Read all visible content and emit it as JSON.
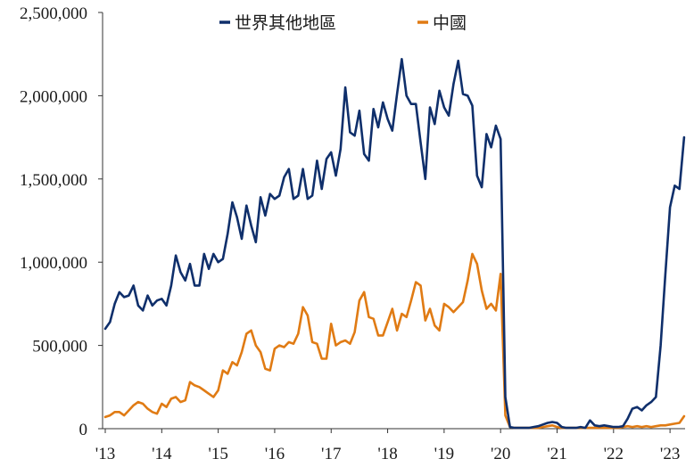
{
  "chart_data": {
    "type": "line",
    "title": "",
    "xlabel": "",
    "ylabel": "",
    "ylim": [
      0,
      2500000
    ],
    "yticks": [
      0,
      500000,
      1000000,
      1500000,
      2000000,
      2500000
    ],
    "ytick_labels": [
      "0",
      "500,000",
      "1,000,000",
      "1,500,000",
      "2,000,000",
      "2,500,000"
    ],
    "xtick_labels": [
      "'13",
      "'14",
      "'15",
      "'16",
      "'17",
      "'18",
      "'19",
      "'20",
      "'21",
      "'22",
      "'23"
    ],
    "x_start": "2013-01",
    "x_end": "2023-04",
    "grid": false,
    "legend_position": "top",
    "series": [
      {
        "name": "世界其他地區",
        "color": "#0f2f6b",
        "values": [
          600000,
          640000,
          750000,
          820000,
          790000,
          800000,
          860000,
          740000,
          710000,
          800000,
          740000,
          770000,
          780000,
          740000,
          860000,
          1040000,
          940000,
          890000,
          990000,
          860000,
          860000,
          1050000,
          960000,
          1050000,
          1000000,
          1020000,
          1170000,
          1360000,
          1270000,
          1140000,
          1340000,
          1220000,
          1120000,
          1390000,
          1280000,
          1410000,
          1380000,
          1400000,
          1510000,
          1560000,
          1380000,
          1400000,
          1560000,
          1380000,
          1400000,
          1610000,
          1440000,
          1620000,
          1660000,
          1520000,
          1680000,
          2050000,
          1780000,
          1760000,
          1910000,
          1650000,
          1610000,
          1920000,
          1810000,
          1960000,
          1860000,
          1790000,
          2010000,
          2220000,
          2000000,
          1950000,
          1950000,
          1720000,
          1500000,
          1930000,
          1830000,
          2030000,
          1930000,
          1880000,
          2070000,
          2210000,
          2010000,
          2000000,
          1940000,
          1520000,
          1450000,
          1770000,
          1690000,
          1820000,
          1740000,
          190000,
          10000,
          5000,
          5000,
          5000,
          5000,
          10000,
          15000,
          25000,
          35000,
          40000,
          35000,
          10000,
          5000,
          5000,
          5000,
          10000,
          5000,
          50000,
          20000,
          15000,
          20000,
          15000,
          10000,
          10000,
          15000,
          60000,
          120000,
          130000,
          110000,
          140000,
          160000,
          190000,
          500000,
          920000,
          1330000,
          1460000,
          1440000,
          1750000
        ]
      },
      {
        "name": "中國",
        "color": "#e07b14",
        "values": [
          70000,
          80000,
          100000,
          100000,
          80000,
          110000,
          140000,
          160000,
          150000,
          120000,
          100000,
          90000,
          150000,
          130000,
          180000,
          190000,
          160000,
          170000,
          280000,
          260000,
          250000,
          230000,
          210000,
          190000,
          230000,
          350000,
          330000,
          400000,
          380000,
          460000,
          570000,
          590000,
          500000,
          460000,
          360000,
          350000,
          480000,
          500000,
          490000,
          520000,
          510000,
          570000,
          730000,
          680000,
          520000,
          510000,
          420000,
          420000,
          630000,
          500000,
          520000,
          530000,
          510000,
          580000,
          770000,
          820000,
          670000,
          660000,
          560000,
          560000,
          640000,
          720000,
          590000,
          690000,
          670000,
          770000,
          880000,
          860000,
          650000,
          720000,
          620000,
          590000,
          750000,
          730000,
          700000,
          730000,
          760000,
          890000,
          1050000,
          990000,
          830000,
          720000,
          750000,
          710000,
          930000,
          80000,
          10000,
          5000,
          5000,
          5000,
          5000,
          5000,
          5000,
          10000,
          15000,
          20000,
          10000,
          5000,
          5000,
          5000,
          5000,
          5000,
          5000,
          5000,
          5000,
          5000,
          5000,
          5000,
          5000,
          5000,
          10000,
          15000,
          10000,
          15000,
          10000,
          15000,
          10000,
          15000,
          20000,
          20000,
          25000,
          30000,
          35000,
          75000
        ]
      }
    ]
  }
}
